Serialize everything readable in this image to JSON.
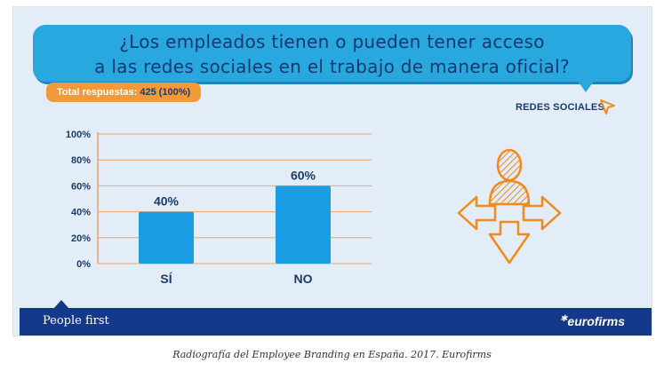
{
  "question": {
    "line1": "¿Los empleados tienen o pueden tener acceso",
    "line2": "a las redes sociales en el trabajo de manera oficial?"
  },
  "responses": {
    "label": "Total respuestas:",
    "value": "425 (100%)"
  },
  "category_label": "REDES SOCIALES",
  "chart_data": {
    "type": "bar",
    "categories": [
      "SÍ",
      "NO"
    ],
    "values": [
      40,
      60
    ],
    "data_labels": [
      "40%",
      "60%"
    ],
    "y_ticks": [
      "0%",
      "20%",
      "40%",
      "60%",
      "80%",
      "100%"
    ],
    "ylim": [
      0,
      100
    ],
    "grid": true,
    "bar_color": "#1a9de2",
    "title": "",
    "xlabel": "",
    "ylabel": ""
  },
  "footer": {
    "tagline": "People first",
    "brand": "eurofirms"
  },
  "caption": "Radiografía del Employee Branding en España. 2017. Eurofirms",
  "colors": {
    "panel_bg": "#e3edf8",
    "bubble": "#29a8e0",
    "badge": "#f29a3a",
    "footer": "#14388a",
    "text_navy": "#1b3a6b",
    "icon_orange": "#f08a1c"
  },
  "icons": [
    "cursor-arrow-icon",
    "person-crossroads-icon",
    "star-icon"
  ]
}
